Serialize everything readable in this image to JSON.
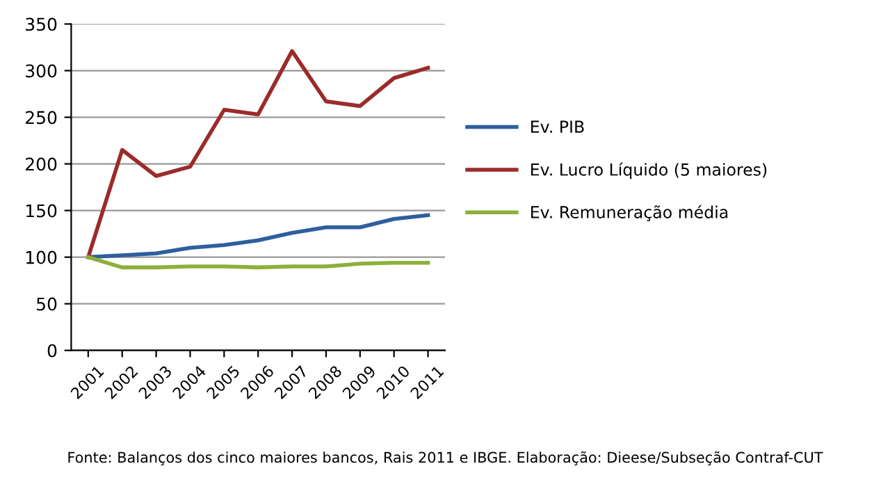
{
  "chart_data": {
    "type": "line",
    "categories": [
      "2001",
      "2002",
      "2003",
      "2004",
      "2005",
      "2006",
      "2007",
      "2008",
      "2009",
      "2010",
      "2011"
    ],
    "series": [
      {
        "name": "Ev. PIB",
        "color": "#2e5f9e",
        "values": [
          100,
          102,
          104,
          110,
          113,
          118,
          126,
          132,
          132,
          141,
          145
        ]
      },
      {
        "name": "Ev. Lucro Líquido (5 maiores)",
        "color": "#9b2b2b",
        "values": [
          100,
          215,
          187,
          197,
          258,
          253,
          321,
          267,
          262,
          292,
          303
        ]
      },
      {
        "name": "Ev. Remuneração média",
        "color": "#8db03a",
        "values": [
          100,
          89,
          89,
          90,
          90,
          89,
          90,
          90,
          93,
          94,
          94
        ]
      }
    ],
    "ylim": [
      0,
      350
    ],
    "yticks": [
      0,
      50,
      100,
      150,
      200,
      250,
      300,
      350
    ],
    "grid": "y",
    "legend": "right",
    "marker": "none",
    "line_style": "solid",
    "annotations": [
      "Fonte: Balanços dos cinco maiores bancos, Rais 2011 e IBGE. Elaboração: Dieese/Subseção Contraf-CUT"
    ]
  }
}
